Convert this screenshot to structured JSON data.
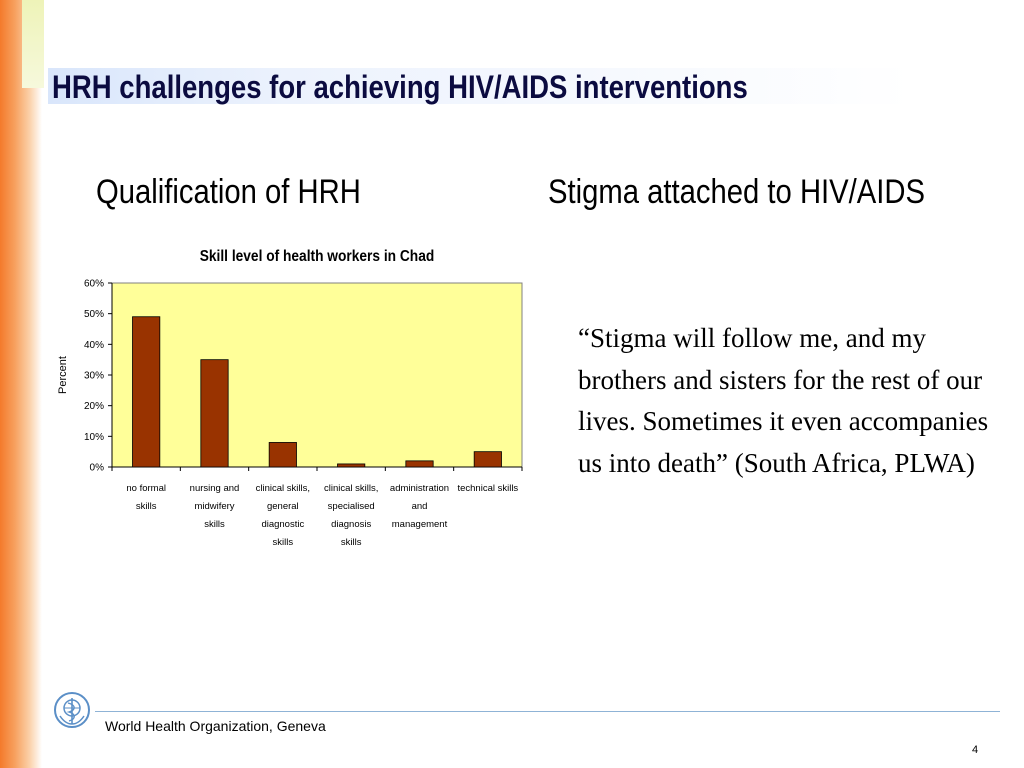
{
  "slide": {
    "title": "HRH challenges for achieving HIV/AIDS interventions",
    "left_heading": "Qualification of HRH",
    "right_heading": "Stigma attached to HIV/AIDS",
    "quote": "“Stigma will follow me, and my brothers and sisters for the rest of our lives. Sometimes it even accompanies us into death” (South Africa, PLWA)",
    "footer_org": "World Health Organization, Geneva",
    "page_number": "4",
    "logo_icon": "who-emblem-icon"
  },
  "colors": {
    "title": "#0b0b40",
    "accent_orange": "#f47a2b",
    "plot_background": "#ffff99",
    "bar_fill": "#993300",
    "footer_rule": "#8fb3d6",
    "logo": "#5b8fc7"
  },
  "chart_data": {
    "type": "bar",
    "title": "Skill level of health workers in Chad",
    "xlabel": "",
    "ylabel": "Percent",
    "categories": [
      "no formal skills",
      "nursing and midwifery skills",
      "clinical skills, general diagnostic skills",
      "clinical skills, specialised diagnosis skills",
      "administration and management",
      "technical skills"
    ],
    "category_label_lines": [
      [
        "no formal",
        "skills"
      ],
      [
        "nursing and",
        "midwifery",
        "skills"
      ],
      [
        "clinical skills,",
        "general",
        "diagnostic",
        "skills"
      ],
      [
        "clinical skills,",
        "specialised",
        "diagnosis",
        "skills"
      ],
      [
        "administration",
        "and",
        "management"
      ],
      [
        "technical skills"
      ]
    ],
    "values": [
      49,
      35,
      8,
      1,
      2,
      5
    ],
    "unit": "%",
    "ylim": [
      0,
      60
    ],
    "yticks": [
      "0%",
      "10%",
      "20%",
      "30%",
      "40%",
      "50%",
      "60%"
    ],
    "grid": false,
    "legend": "none"
  }
}
